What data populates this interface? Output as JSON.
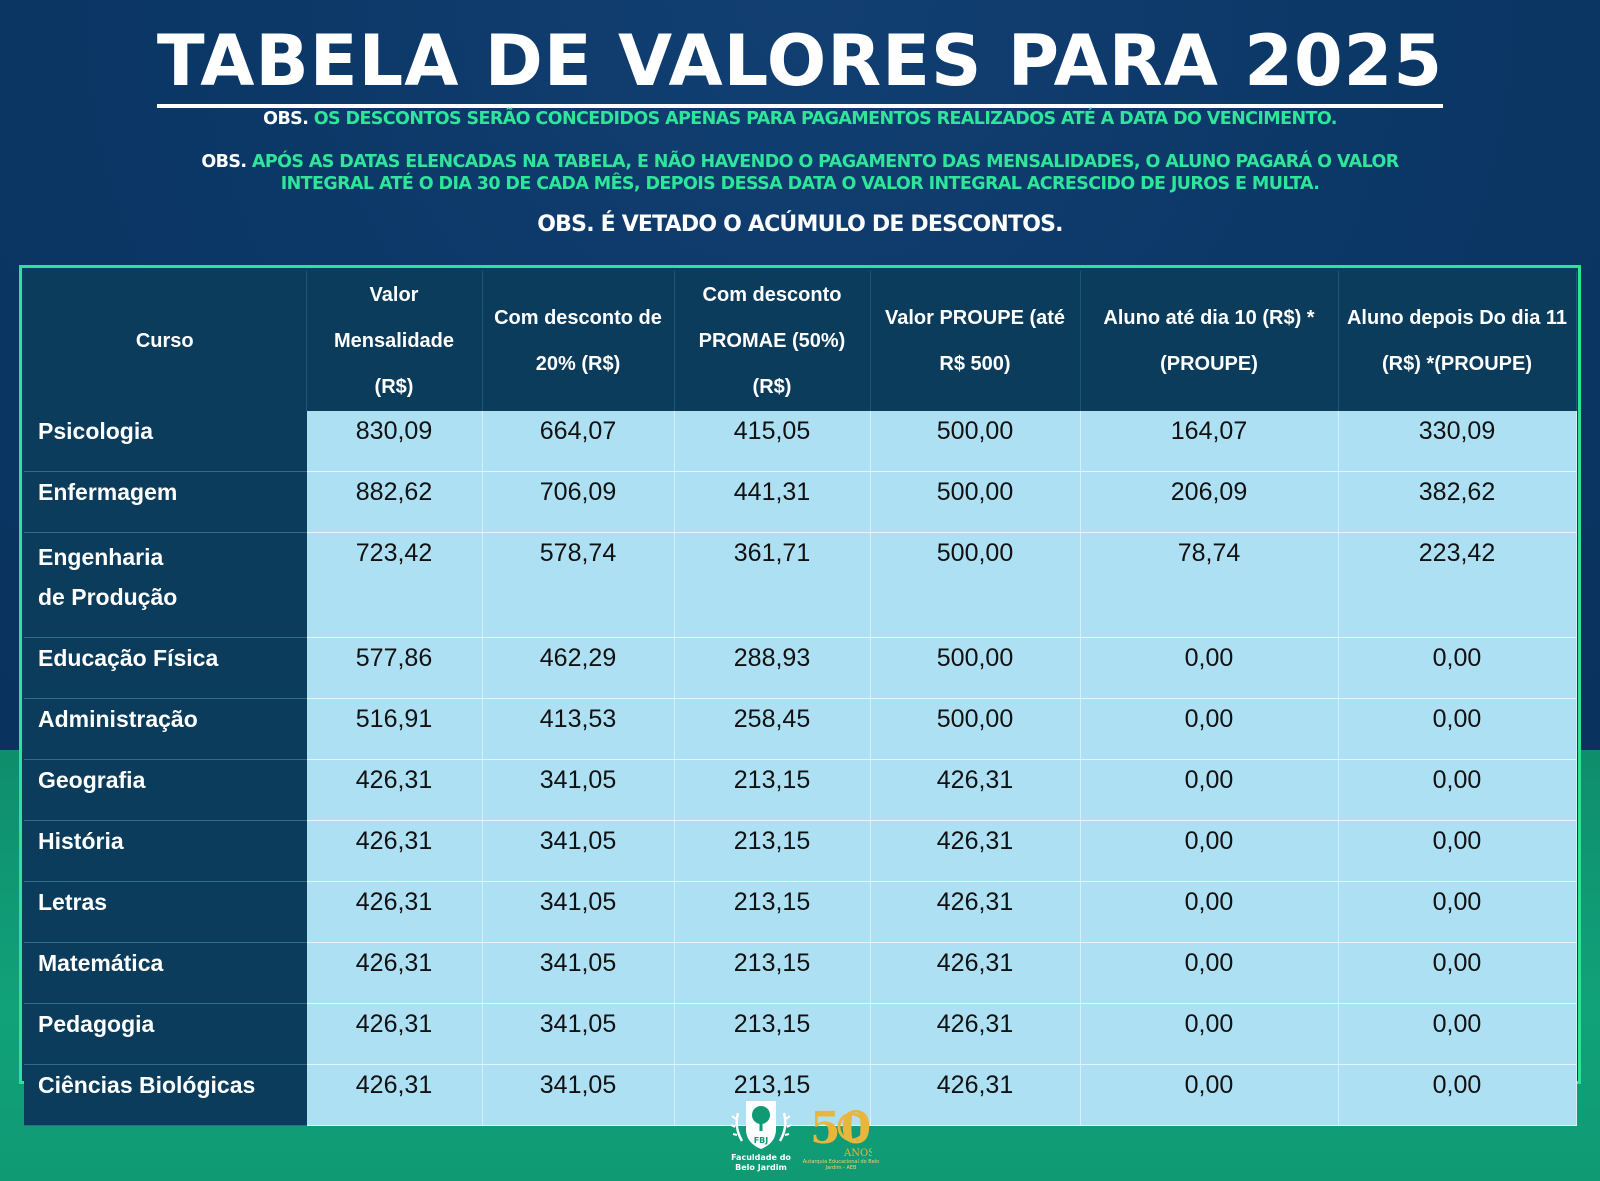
{
  "title": "TABELA DE VALORES PARA 2025",
  "notes": [
    {
      "label": "OBS.",
      "text": "OS DESCONTOS SERÃO CONCEDIDOS APENAS PARA PAGAMENTOS REALIZADOS ATÉ A DATA DO VENCIMENTO."
    },
    {
      "label": "OBS.",
      "text": "APÓS AS DATAS ELENCADAS NA TABELA, E NÃO HAVENDO O PAGAMENTO DAS MENSALIDADES, O ALUNO PAGARÁ O VALOR INTEGRAL ATÉ O DIA 30 DE CADA MÊS, DEPOIS DESSA DATA O VALOR INTEGRAL ACRESCIDO DE JUROS E MULTA."
    },
    {
      "text": "OBS.  É VETADO O ACÚMULO DE DESCONTOS."
    }
  ],
  "table": {
    "headers": [
      "Curso",
      "Valor Mensalidade (R$)",
      "Com desconto de 20% (R$)",
      "Com desconto PROMAE (50%) (R$)",
      "Valor PROUPE (até R$ 500)",
      "Aluno até dia 10 (R$) *(PROUPE)",
      "Aluno depois Do dia 11 (R$) *(PROUPE)"
    ],
    "rows": [
      {
        "course": "Psicologia",
        "values": [
          "830,09",
          "664,07",
          "415,05",
          "500,00",
          "164,07",
          "330,09"
        ]
      },
      {
        "course": "Enfermagem",
        "values": [
          "882,62",
          "706,09",
          "441,31",
          "500,00",
          "206,09",
          "382,62"
        ]
      },
      {
        "course_line1": "Engenharia",
        "course_line2": "de Produção",
        "values": [
          "723,42",
          "578,74",
          "361,71",
          "500,00",
          "78,74",
          "223,42"
        ]
      },
      {
        "course": "Educação Física",
        "values": [
          "577,86",
          "462,29",
          "288,93",
          "500,00",
          "0,00",
          "0,00"
        ]
      },
      {
        "course": "Administração",
        "values": [
          "516,91",
          "413,53",
          "258,45",
          "500,00",
          "0,00",
          "0,00"
        ]
      },
      {
        "course": "Geografia",
        "values": [
          "426,31",
          "341,05",
          "213,15",
          "426,31",
          "0,00",
          "0,00"
        ]
      },
      {
        "course": "História",
        "values": [
          "426,31",
          "341,05",
          "213,15",
          "426,31",
          "0,00",
          "0,00"
        ]
      },
      {
        "course": "Letras",
        "values": [
          "426,31",
          "341,05",
          "213,15",
          "426,31",
          "0,00",
          "0,00"
        ]
      },
      {
        "course": "Matemática",
        "values": [
          "426,31",
          "341,05",
          "213,15",
          "426,31",
          "0,00",
          "0,00"
        ]
      },
      {
        "course": "Pedagogia",
        "values": [
          "426,31",
          "341,05",
          "213,15",
          "426,31",
          "0,00",
          "0,00"
        ]
      },
      {
        "course": "Ciências Biológicas",
        "values": [
          "426,31",
          "341,05",
          "213,15",
          "426,31",
          "0,00",
          "0,00"
        ]
      }
    ]
  },
  "logos": {
    "fbj_text": "Faculdade do Belo Jardim",
    "fbj_monogram": "FBJ",
    "anniversary_text": "Autarquia Educacional do Belo Jardim - AEB",
    "anniversary_number": "50",
    "anniversary_word": "ANOS"
  },
  "colors": {
    "background_navy": "#0b3766",
    "background_green": "#11a27a",
    "accent_green": "#2ee59a",
    "header_cell": "#0b3c5c",
    "body_cell": "#aee0f3"
  }
}
